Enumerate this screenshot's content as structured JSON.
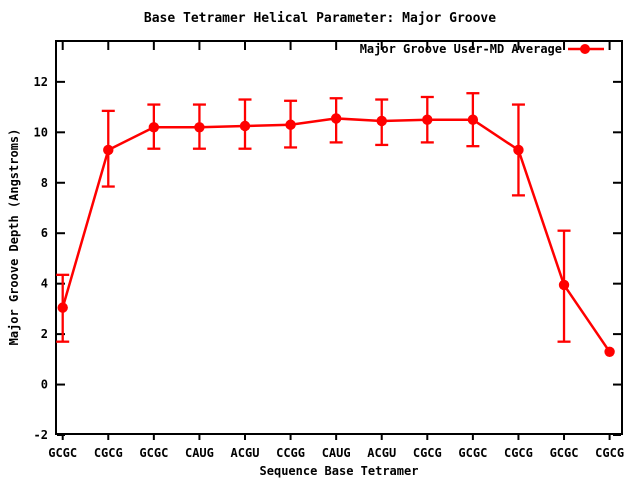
{
  "chart_data": {
    "type": "line",
    "title": "Base Tetramer Helical Parameter: Major Groove",
    "xlabel": "Sequence Base Tetramer",
    "ylabel": "Major Groove Depth (Angstroms)",
    "legend_position": "top-right-inside",
    "grid": false,
    "marker": "filled-circle",
    "error_bars": true,
    "categories": [
      "GCGC",
      "CGCG",
      "GCGC",
      "CAUG",
      "ACGU",
      "CCGG",
      "CAUG",
      "ACGU",
      "CGCG",
      "GCGC",
      "CGCG",
      "GCGC",
      "CGCG"
    ],
    "series": [
      {
        "name": "Major Groove User-MD Average",
        "values": [
          3.05,
          9.3,
          10.2,
          10.2,
          10.25,
          10.3,
          10.55,
          10.45,
          10.5,
          10.5,
          9.3,
          3.95,
          1.3
        ],
        "err_low": [
          1.7,
          7.85,
          9.35,
          9.35,
          9.35,
          9.4,
          9.6,
          9.5,
          9.6,
          9.45,
          7.5,
          1.7,
          null
        ],
        "err_high": [
          4.35,
          10.85,
          11.1,
          11.1,
          11.3,
          11.25,
          11.35,
          11.3,
          11.4,
          11.55,
          11.1,
          6.1,
          null
        ]
      }
    ],
    "yticks": [
      -2,
      0,
      2,
      4,
      6,
      8,
      10,
      12
    ],
    "ylim": [
      -1.96,
      13.62
    ],
    "colors": {
      "series": "#ff0000",
      "text": "#000000",
      "border": "#000000",
      "background": "#ffffff"
    }
  }
}
